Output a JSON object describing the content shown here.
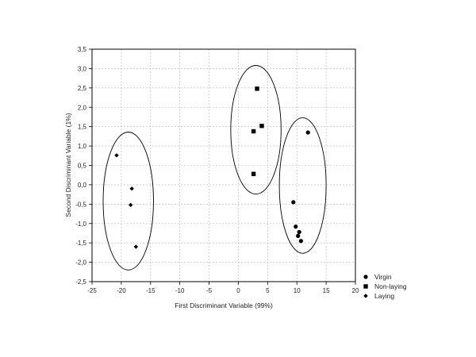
{
  "chart_data": {
    "type": "scatter",
    "title": "",
    "xlabel": "First Discriminant Variable (99%)",
    "ylabel": "Second Discriminant Variable (1%)",
    "xlim": [
      -25,
      20
    ],
    "ylim": [
      -2.5,
      3.5
    ],
    "xticks": [
      -25,
      -20,
      -15,
      -10,
      -5,
      0,
      5,
      10,
      15,
      20
    ],
    "yticks": [
      -2.5,
      -2.0,
      -1.5,
      -1.0,
      -0.5,
      0.0,
      0.5,
      1.0,
      1.5,
      2.0,
      2.5,
      3.0,
      3.5
    ],
    "xtick_labels": [
      "-25",
      "-20",
      "-15",
      "-10",
      "-5",
      "0",
      "5",
      "10",
      "15",
      "20"
    ],
    "ytick_labels": [
      "-2,5",
      "-2,0",
      "-1,5",
      "-1,0",
      "-0,5",
      "0,0",
      "0,5",
      "1,0",
      "1,5",
      "2,0",
      "2,5",
      "3,0",
      "3,5"
    ],
    "grid": true,
    "legend_position": "bottom-right-outside",
    "marker_color": "#000000",
    "series": [
      {
        "name": "Virgin",
        "marker": "circle",
        "points": [
          {
            "x": 11.9,
            "y": 1.35
          },
          {
            "x": 9.4,
            "y": -0.45
          },
          {
            "x": 9.8,
            "y": -1.08
          },
          {
            "x": 10.4,
            "y": -1.22
          },
          {
            "x": 10.2,
            "y": -1.32
          },
          {
            "x": 10.7,
            "y": -1.45
          }
        ]
      },
      {
        "name": "Non-laying",
        "marker": "square",
        "points": [
          {
            "x": 3.2,
            "y": 2.48
          },
          {
            "x": 4.0,
            "y": 1.52
          },
          {
            "x": 2.6,
            "y": 1.38
          },
          {
            "x": 2.6,
            "y": 0.28
          }
        ]
      },
      {
        "name": "Laying",
        "marker": "diamond",
        "points": [
          {
            "x": -20.8,
            "y": 0.76
          },
          {
            "x": -18.2,
            "y": -0.1
          },
          {
            "x": -18.4,
            "y": -0.52
          },
          {
            "x": -17.5,
            "y": -1.6
          }
        ]
      }
    ],
    "ellipses": [
      {
        "group": "Laying",
        "cx": -18.8,
        "cy": -0.42,
        "rx": 4.3,
        "ry": 1.78
      },
      {
        "group": "Non-laying",
        "cx": 3.0,
        "cy": 1.42,
        "rx": 4.3,
        "ry": 1.66
      },
      {
        "group": "Virgin",
        "cx": 11.0,
        "cy": -0.02,
        "rx": 4.0,
        "ry": 1.75
      }
    ]
  }
}
